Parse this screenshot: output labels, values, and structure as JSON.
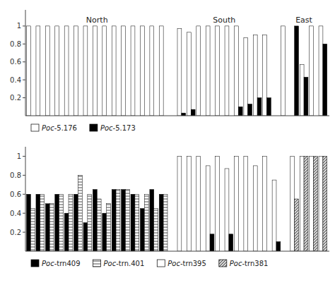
{
  "chart_data": [
    {
      "type": "bar",
      "categories": [
        "North",
        "South",
        "East"
      ],
      "series": [
        {
          "name": "Poc-5.176",
          "color": "white",
          "values": [
            [
              1,
              1,
              1,
              1,
              1,
              1,
              1,
              1,
              1,
              1,
              1,
              1,
              1,
              1,
              1
            ],
            [
              0.97,
              0.93,
              1,
              1,
              1,
              1,
              1,
              0.87,
              0.9,
              0.9
            ],
            [
              1,
              0,
              0.57,
              1,
              1
            ]
          ]
        },
        {
          "name": "Poc-5.173",
          "color": "black",
          "values": [
            [
              0,
              0,
              0,
              0,
              0,
              0,
              0,
              0,
              0,
              0,
              0,
              0,
              0,
              0,
              0
            ],
            [
              0.03,
              0.07,
              0,
              0,
              0,
              0,
              0.1,
              0.13,
              0.2,
              0.2
            ],
            [
              0,
              1,
              0.43,
              0,
              0.8
            ]
          ]
        }
      ],
      "ylim": [
        0,
        1.18
      ],
      "yticks": [
        0.2,
        0.4,
        0.6,
        0.8,
        1
      ],
      "grid": false,
      "legend": "bottom",
      "tick_labels": "y"
    },
    {
      "type": "bar",
      "categories": [
        null,
        null,
        null
      ],
      "series": [
        {
          "name": "Poc-trn409",
          "color": "black",
          "values": [
            [
              0.6,
              0.6,
              0.5,
              0.6,
              0.4,
              0.6,
              0.3,
              0.65,
              0.4,
              0.65,
              0.65,
              0.6,
              0.45,
              0.65,
              0.6
            ],
            null,
            null
          ]
        },
        {
          "name": "Poc-trn.401",
          "color": "white",
          "marker": "hatch-horizontal",
          "values": [
            [
              0.45,
              0.6,
              0.5,
              0.6,
              0.6,
              0.8,
              0.6,
              0.55,
              0.5,
              0.65,
              0.65,
              0.6,
              0.6,
              0.45,
              0.6
            ],
            null,
            null
          ]
        },
        {
          "name": "Poc-trn395",
          "color": "white",
          "values": [
            null,
            [
              1,
              1,
              1,
              0.9,
              1,
              0.87,
              1,
              1,
              0.9,
              1,
              0.75
            ],
            null
          ]
        },
        {
          "name": "Poc-trn409",
          "color": "black",
          "values": [
            null,
            [
              0,
              0,
              0,
              0.18,
              0,
              0.18,
              0,
              0,
              0,
              0,
              0.1
            ],
            null
          ]
        },
        {
          "name": "Poc-trn395",
          "color": "white",
          "values": [
            null,
            null,
            [
              1,
              1,
              1,
              1
            ]
          ]
        },
        {
          "name": "Poc-trn381",
          "color": "lightgray",
          "marker": "hatch-diagonal",
          "values": [
            null,
            null,
            [
              0.55,
              1,
              1,
              1
            ]
          ]
        }
      ],
      "ylim": [
        0,
        1.1
      ],
      "yticks": [
        0.2,
        0.4,
        0.6,
        0.8,
        1
      ],
      "grid": false,
      "legend": "bottom",
      "tick_labels": "y"
    }
  ]
}
